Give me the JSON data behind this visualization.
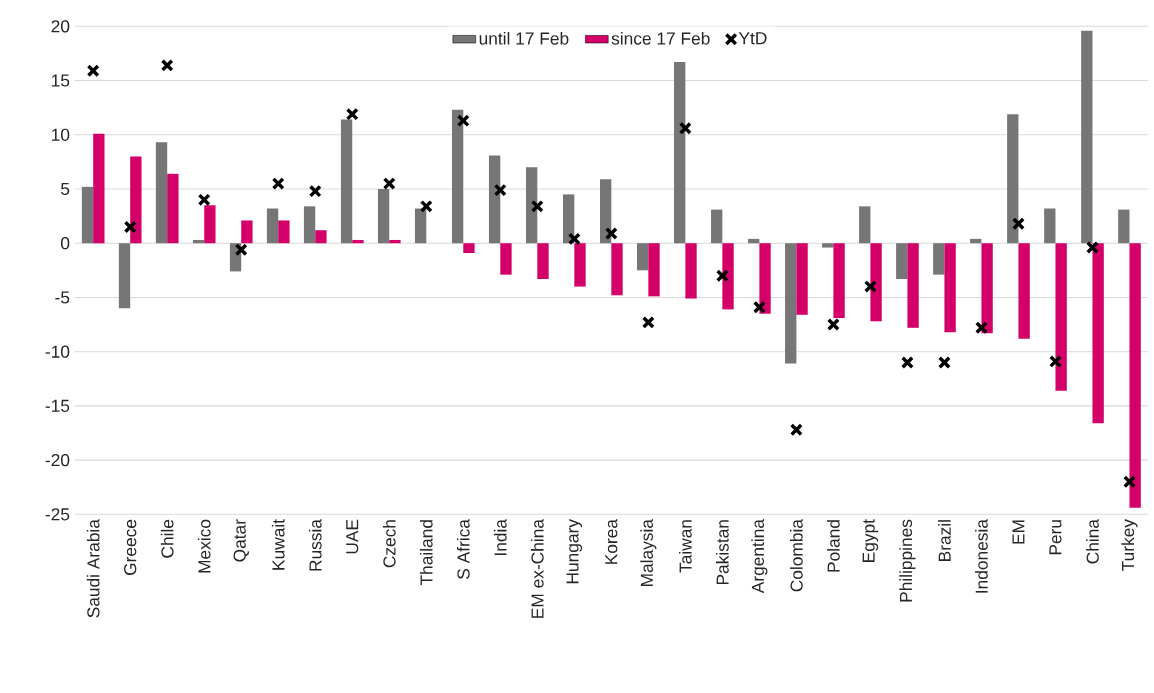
{
  "chart_data": {
    "type": "bar",
    "categories": [
      "Saudi Arabia",
      "Greece",
      "Chile",
      "Mexico",
      "Qatar",
      "Kuwait",
      "Russia",
      "UAE",
      "Czech",
      "Thailand",
      "S Africa",
      "India",
      "EM ex-China",
      "Hungary",
      "Korea",
      "Malaysia",
      "Taiwan",
      "Pakistan",
      "Argentina",
      "Colombia",
      "Poland",
      "Egypt",
      "Philippines",
      "Brazil",
      "Indonesia",
      "EM",
      "Peru",
      "China",
      "Turkey"
    ],
    "series": [
      {
        "name": "until 17 Feb",
        "color": "#767676",
        "values": [
          5.2,
          -6.0,
          9.3,
          0.3,
          -2.6,
          3.2,
          3.4,
          11.4,
          5.0,
          3.2,
          12.3,
          8.1,
          7.0,
          4.5,
          5.9,
          -2.5,
          16.7,
          3.1,
          0.4,
          -11.1,
          -0.4,
          3.4,
          -3.3,
          -2.9,
          0.4,
          11.9,
          3.2,
          19.6,
          3.1
        ]
      },
      {
        "name": "since 17 Feb",
        "color": "#d4006a",
        "values": [
          10.1,
          8.0,
          6.4,
          3.5,
          2.1,
          2.1,
          1.2,
          0.3,
          0.3,
          null,
          -0.9,
          -2.9,
          -3.3,
          -4.0,
          -4.8,
          -4.9,
          -5.1,
          -6.1,
          -6.5,
          -6.6,
          -6.9,
          -7.2,
          -7.8,
          -8.2,
          -8.3,
          -8.8,
          -13.6,
          -16.6,
          -24.4
        ]
      },
      {
        "name": "YtD",
        "type": "scatter",
        "marker": "cross",
        "color": "#000000",
        "x": [
          "Saudi Arabia",
          "Greece",
          "Chile",
          "Mexico",
          "Qatar",
          "Kuwait",
          "Russia",
          "UAE",
          "Czech",
          "Thailand",
          "S Africa",
          "India",
          "EM ex-China",
          "Hungary",
          "Korea",
          "Malaysia",
          "Taiwan",
          "Pakistan",
          "Argentina",
          "Colombia",
          "Poland",
          "Egypt",
          "Philippines",
          "Brazil",
          "Indonesia",
          "EM",
          "Peru",
          "China",
          "Turkey"
        ],
        "values": [
          15.9,
          1.5,
          16.4,
          4.0,
          -0.6,
          5.5,
          4.8,
          11.9,
          5.5,
          3.4,
          11.3,
          4.9,
          3.4,
          0.4,
          0.9,
          -7.3,
          10.6,
          -3.0,
          -5.9,
          -17.2,
          -7.5,
          -4.0,
          -11.0,
          -11.0,
          -7.8,
          1.8,
          -10.9,
          -0.4,
          -22.0
        ]
      }
    ],
    "ylim": [
      -25,
      20
    ],
    "yticks": [
      -25,
      -20,
      -15,
      -10,
      -5,
      0,
      5,
      10,
      15,
      20
    ],
    "grid": "y",
    "legend": "top"
  }
}
